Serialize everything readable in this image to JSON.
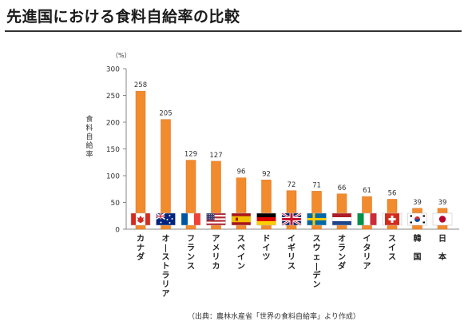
{
  "page": {
    "title": "先進国における食料自給率の比較",
    "source": "（出典：農林水産省「世界の食料自給率」より作成）"
  },
  "colors": {
    "bar": "#f28a2e",
    "bar_stroke": "#d9741c",
    "axis": "#888888",
    "text": "#333333"
  },
  "chart_data": {
    "type": "bar",
    "title": "",
    "xlabel": "",
    "ylabel": "食料自給率",
    "yunit": "（%）",
    "ylim": [
      0,
      300
    ],
    "yticks": [
      0,
      50,
      100,
      150,
      200,
      250,
      300
    ],
    "grid": false,
    "categories": [
      "カナダ",
      "オーストラリア",
      "フランス",
      "アメリカ",
      "スペイン",
      "ドイツ",
      "イギリス",
      "スウェーデン",
      "オランダ",
      "イタリア",
      "スイス",
      "韓国",
      "日本"
    ],
    "category_display": [
      "カナダ",
      "オ|ストラリア",
      "フランス",
      "アメリカ",
      "スペイン",
      "ドイツ",
      "イギリス",
      "スウェ|デン",
      "オランダ",
      "イタリア",
      "スイス",
      "韓　国",
      "日　本"
    ],
    "values": [
      258,
      205,
      129,
      127,
      96,
      92,
      72,
      71,
      66,
      61,
      56,
      39,
      39
    ],
    "flags": [
      "canada-flag",
      "australia-flag",
      "france-flag",
      "usa-flag",
      "spain-flag",
      "germany-flag",
      "uk-flag",
      "sweden-flag",
      "netherlands-flag",
      "italy-flag",
      "switzerland-flag",
      "south-korea-flag",
      "japan-flag"
    ]
  }
}
